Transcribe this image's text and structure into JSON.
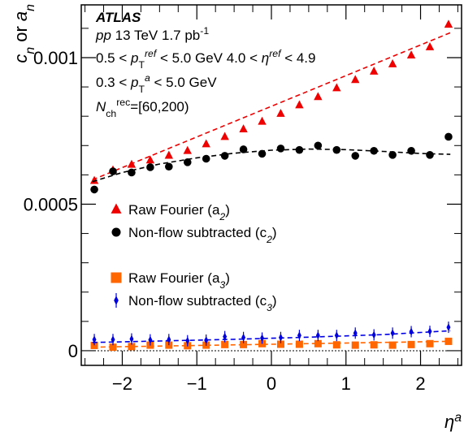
{
  "chart_data": {
    "type": "scatter",
    "ylabel": "c_n or a_n",
    "xlabel": "η^a",
    "xlim": [
      -2.55,
      2.55
    ],
    "ylim": [
      -5e-05,
      0.00118
    ],
    "x_ticks": [
      -2,
      -1,
      0,
      1,
      2
    ],
    "x_tick_labels": [
      "−2",
      "−1",
      "0",
      "1",
      "2"
    ],
    "y_ticks": [
      0,
      0.0005,
      0.001
    ],
    "y_tick_labels": [
      "0",
      "0.0005",
      "0.001"
    ],
    "grid": false,
    "annotations": {
      "experiment": "ATLAS",
      "line1": "pp 13 TeV   1.7 pb",
      "line1_sup": "-1",
      "line2": "0.5 < p_T^ref < 5.0 GeV  4.0 < η^ref < 4.9",
      "line3": "0.3 < p_T^a < 5.0 GeV",
      "line4": "N_ch^rec=[60,200)"
    },
    "x": [
      -2.375,
      -2.125,
      -1.875,
      -1.625,
      -1.375,
      -1.125,
      -0.875,
      -0.625,
      -0.375,
      -0.125,
      0.125,
      0.375,
      0.625,
      0.875,
      1.125,
      1.375,
      1.625,
      1.875,
      2.125,
      2.375
    ],
    "series": [
      {
        "name": "Raw Fourier (a_2)",
        "legend_label": "Raw Fourier (a",
        "legend_sub": "2",
        "marker": "triangle",
        "color": "#ee0000",
        "fit_color": "#ee0000",
        "values": [
          0.00058,
          0.000616,
          0.000635,
          0.00065,
          0.000666,
          0.000682,
          0.000705,
          0.00073,
          0.000756,
          0.000782,
          0.000809,
          0.000838,
          0.000866,
          0.000896,
          0.000924,
          0.000953,
          0.000978,
          0.001008,
          0.001036,
          0.001113
        ],
        "fit": [
          [
            -2.4,
            0.000583
          ],
          [
            2.4,
            0.001085
          ]
        ]
      },
      {
        "name": "Non-flow subtracted (c_2)",
        "legend_label": "Non-flow subtracted (c",
        "legend_sub": "2",
        "marker": "circle",
        "color": "#000000",
        "fit_color": "#000000",
        "values": [
          0.00055,
          0.000612,
          0.000608,
          0.000626,
          0.000628,
          0.000643,
          0.000655,
          0.000665,
          0.000687,
          0.000672,
          0.00069,
          0.000685,
          0.0007,
          0.000685,
          0.000665,
          0.000682,
          0.000668,
          0.000682,
          0.000668,
          0.00073
        ],
        "fit": [
          [
            -2.4,
            0.000577
          ],
          [
            -2.0,
            0.000608
          ],
          [
            -1.5,
            0.000637
          ],
          [
            -1.0,
            0.000658
          ],
          [
            -0.5,
            0.000674
          ],
          [
            0.0,
            0.000684
          ],
          [
            0.5,
            0.000688
          ],
          [
            1.0,
            0.000686
          ],
          [
            1.5,
            0.00068
          ],
          [
            2.0,
            0.000673
          ],
          [
            2.4,
            0.00067
          ]
        ]
      },
      {
        "name": "Raw Fourier (a_3)",
        "legend_label": "Raw Fourier (a",
        "legend_sub": "3",
        "marker": "square",
        "color": "#ff6600",
        "fit_color": "#ff6600",
        "values": [
          1.8e-05,
          1.2e-05,
          1.4e-05,
          1.9e-05,
          1.9e-05,
          1.7e-05,
          1.9e-05,
          2.1e-05,
          2.1e-05,
          2.4e-05,
          2.2e-05,
          2.2e-05,
          2.4e-05,
          2e-05,
          1.9e-05,
          2e-05,
          1.9e-05,
          2.1e-05,
          2.4e-05,
          3.2e-05
        ],
        "fit": [
          [
            -2.4,
            1.2e-05
          ],
          [
            2.4,
            3.2e-05
          ]
        ]
      },
      {
        "name": "Non-flow subtracted (c_3)",
        "legend_label": "Non-flow subtracted (c",
        "legend_sub": "3",
        "marker": "diamond",
        "color": "#0000dd",
        "fit_color": "#0000dd",
        "values": [
          3.8e-05,
          3.8e-05,
          4e-05,
          3.7e-05,
          3.8e-05,
          3.4e-05,
          3.6e-05,
          4.8e-05,
          4.5e-05,
          4.3e-05,
          4.5e-05,
          5.2e-05,
          5.2e-05,
          5.2e-05,
          6e-05,
          5.4e-05,
          6e-05,
          6.5e-05,
          6.6e-05,
          8e-05
        ],
        "fit": [
          [
            -2.4,
            2.8e-05
          ],
          [
            -1.5,
            3.3e-05
          ],
          [
            -0.5,
            3.9e-05
          ],
          [
            0.5,
            4.6e-05
          ],
          [
            1.5,
            5.5e-05
          ],
          [
            2.4,
            6.8e-05
          ]
        ]
      }
    ]
  }
}
